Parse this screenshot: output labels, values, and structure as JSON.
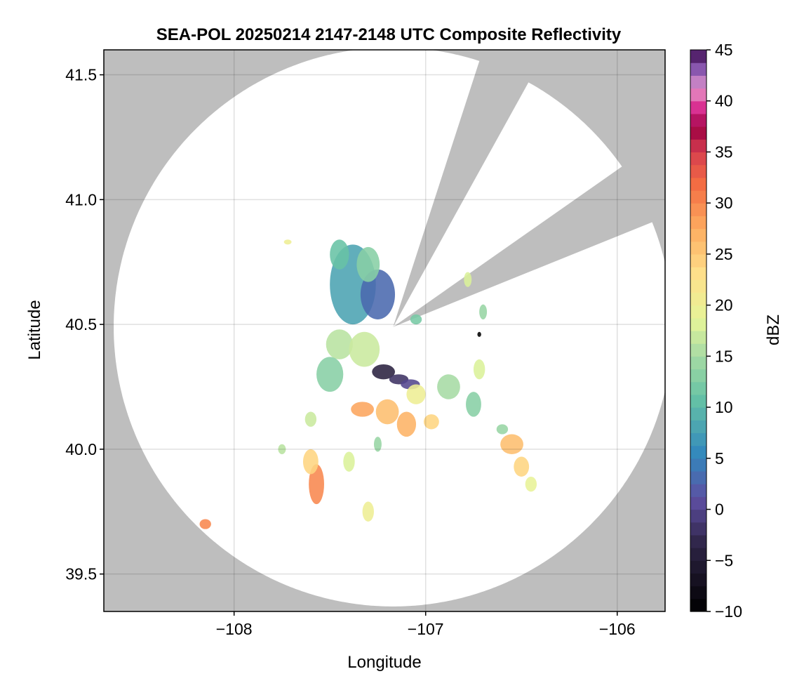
{
  "chart_data": {
    "type": "heatmap",
    "title": "SEA-POL 20250214 2147-2148 UTC Composite Reflectivity",
    "xlabel": "Longitude",
    "ylabel": "Latitude",
    "xlim": [
      -108.68,
      -105.75
    ],
    "ylim": [
      39.35,
      41.6
    ],
    "xticks": [
      -108,
      -107,
      -106
    ],
    "xtick_labels": [
      "−108",
      "−107",
      "−106"
    ],
    "yticks": [
      39.5,
      40.0,
      40.5,
      41.0,
      41.5
    ],
    "ytick_labels": [
      "39.5",
      "40.0",
      "40.5",
      "41.0",
      "41.5"
    ],
    "grid": true,
    "background_color": "#bebebe",
    "coverage_color": "#ffffff",
    "radar": {
      "center": [
        -107.17,
        40.49
      ],
      "range_lat_deg": 1.12,
      "blocked_sectors_deg": [
        [
          18,
          29
        ],
        [
          55,
          68
        ]
      ]
    },
    "colorbar": {
      "label": "dBZ",
      "min": -10,
      "max": 45,
      "step": 1.25,
      "ticks": [
        -10,
        -5,
        0,
        5,
        10,
        15,
        20,
        25,
        30,
        35,
        40,
        45
      ],
      "tick_labels": [
        "−10",
        "−5",
        "0",
        "5",
        "10",
        "15",
        "20",
        "25",
        "30",
        "35",
        "40",
        "45"
      ],
      "colormap": "Spectral_r"
    },
    "echoes": [
      {
        "lon": -107.38,
        "lat": 40.66,
        "rlon": 0.12,
        "rlat": 0.16,
        "dbz": 8
      },
      {
        "lon": -107.25,
        "lat": 40.62,
        "rlon": 0.09,
        "rlat": 0.1,
        "dbz": 3
      },
      {
        "lon": -107.45,
        "lat": 40.78,
        "rlon": 0.05,
        "rlat": 0.06,
        "dbz": 11
      },
      {
        "lon": -107.3,
        "lat": 40.74,
        "rlon": 0.06,
        "rlat": 0.07,
        "dbz": 13
      },
      {
        "lon": -107.45,
        "lat": 40.42,
        "rlon": 0.07,
        "rlat": 0.06,
        "dbz": 16
      },
      {
        "lon": -107.32,
        "lat": 40.4,
        "rlon": 0.08,
        "rlat": 0.07,
        "dbz": 17
      },
      {
        "lon": -107.5,
        "lat": 40.3,
        "rlon": 0.07,
        "rlat": 0.07,
        "dbz": 13
      },
      {
        "lon": -107.22,
        "lat": 40.31,
        "rlon": 0.06,
        "rlat": 0.03,
        "dbz": -4
      },
      {
        "lon": -107.14,
        "lat": 40.28,
        "rlon": 0.05,
        "rlat": 0.02,
        "dbz": -2
      },
      {
        "lon": -107.08,
        "lat": 40.26,
        "rlon": 0.05,
        "rlat": 0.02,
        "dbz": 0
      },
      {
        "lon": -107.33,
        "lat": 40.16,
        "rlon": 0.06,
        "rlat": 0.03,
        "dbz": 28
      },
      {
        "lon": -107.2,
        "lat": 40.15,
        "rlon": 0.06,
        "rlat": 0.05,
        "dbz": 26
      },
      {
        "lon": -107.05,
        "lat": 40.22,
        "rlon": 0.05,
        "rlat": 0.04,
        "dbz": 20
      },
      {
        "lon": -107.1,
        "lat": 40.1,
        "rlon": 0.05,
        "rlat": 0.05,
        "dbz": 27
      },
      {
        "lon": -106.97,
        "lat": 40.11,
        "rlon": 0.04,
        "rlat": 0.03,
        "dbz": 24
      },
      {
        "lon": -106.88,
        "lat": 40.25,
        "rlon": 0.06,
        "rlat": 0.05,
        "dbz": 15
      },
      {
        "lon": -106.75,
        "lat": 40.18,
        "rlon": 0.04,
        "rlat": 0.05,
        "dbz": 13
      },
      {
        "lon": -106.72,
        "lat": 40.32,
        "rlon": 0.03,
        "rlat": 0.04,
        "dbz": 18
      },
      {
        "lon": -106.6,
        "lat": 40.08,
        "rlon": 0.03,
        "rlat": 0.02,
        "dbz": 14
      },
      {
        "lon": -107.57,
        "lat": 39.86,
        "rlon": 0.04,
        "rlat": 0.08,
        "dbz": 30
      },
      {
        "lon": -107.6,
        "lat": 39.95,
        "rlon": 0.04,
        "rlat": 0.05,
        "dbz": 24
      },
      {
        "lon": -107.4,
        "lat": 39.95,
        "rlon": 0.03,
        "rlat": 0.04,
        "dbz": 18
      },
      {
        "lon": -107.3,
        "lat": 39.75,
        "rlon": 0.03,
        "rlat": 0.04,
        "dbz": 20
      },
      {
        "lon": -107.25,
        "lat": 40.02,
        "rlon": 0.02,
        "rlat": 0.03,
        "dbz": 14
      },
      {
        "lon": -106.55,
        "lat": 40.02,
        "rlon": 0.06,
        "rlat": 0.04,
        "dbz": 26
      },
      {
        "lon": -106.5,
        "lat": 39.93,
        "rlon": 0.04,
        "rlat": 0.04,
        "dbz": 24
      },
      {
        "lon": -106.45,
        "lat": 39.86,
        "rlon": 0.03,
        "rlat": 0.03,
        "dbz": 19
      },
      {
        "lon": -108.15,
        "lat": 39.7,
        "rlon": 0.03,
        "rlat": 0.02,
        "dbz": 30
      },
      {
        "lon": -107.6,
        "lat": 40.12,
        "rlon": 0.03,
        "rlat": 0.03,
        "dbz": 17
      },
      {
        "lon": -107.75,
        "lat": 40.0,
        "rlon": 0.02,
        "rlat": 0.02,
        "dbz": 16
      },
      {
        "lon": -106.7,
        "lat": 40.55,
        "rlon": 0.02,
        "rlat": 0.03,
        "dbz": 14
      },
      {
        "lon": -106.78,
        "lat": 40.68,
        "rlon": 0.02,
        "rlat": 0.03,
        "dbz": 18
      },
      {
        "lon": -107.05,
        "lat": 40.52,
        "rlon": 0.03,
        "rlat": 0.02,
        "dbz": 12
      },
      {
        "lon": -107.72,
        "lat": 40.83,
        "rlon": 0.02,
        "rlat": 0.01,
        "dbz": 20
      },
      {
        "lon": -106.72,
        "lat": 40.46,
        "rlon": 0.01,
        "rlat": 0.01,
        "dbz": -10
      }
    ]
  }
}
